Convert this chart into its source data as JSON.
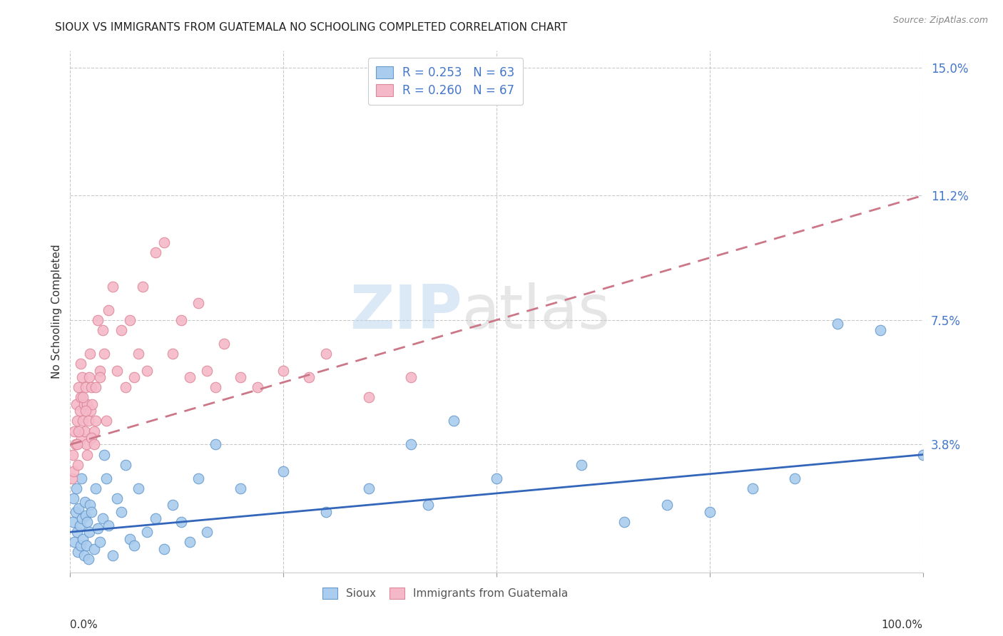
{
  "title": "SIOUX VS IMMIGRANTS FROM GUATEMALA NO SCHOOLING COMPLETED CORRELATION CHART",
  "source": "Source: ZipAtlas.com",
  "ylabel": "No Schooling Completed",
  "yticks": [
    "15.0%",
    "11.2%",
    "7.5%",
    "3.8%"
  ],
  "ytick_values": [
    15.0,
    11.2,
    7.5,
    3.8
  ],
  "watermark_zip": "ZIP",
  "watermark_atlas": "atlas",
  "sioux_color": "#aaccee",
  "sioux_edge_color": "#6699cc",
  "immig_color": "#f5b8c8",
  "immig_edge_color": "#dd8899",
  "sioux_line_color": "#3366bb",
  "immig_line_color": "#cc7788",
  "title_fontsize": 11,
  "sioux_scatter": [
    [
      0.3,
      1.5
    ],
    [
      0.4,
      2.2
    ],
    [
      0.5,
      0.9
    ],
    [
      0.6,
      1.8
    ],
    [
      0.7,
      2.5
    ],
    [
      0.8,
      1.2
    ],
    [
      0.9,
      0.6
    ],
    [
      1.0,
      1.9
    ],
    [
      1.1,
      1.4
    ],
    [
      1.2,
      0.8
    ],
    [
      1.3,
      2.8
    ],
    [
      1.4,
      1.6
    ],
    [
      1.5,
      1.0
    ],
    [
      1.6,
      0.5
    ],
    [
      1.7,
      2.1
    ],
    [
      1.8,
      1.7
    ],
    [
      1.9,
      0.8
    ],
    [
      2.0,
      1.5
    ],
    [
      2.1,
      0.4
    ],
    [
      2.2,
      1.2
    ],
    [
      2.3,
      2.0
    ],
    [
      2.5,
      1.8
    ],
    [
      2.8,
      0.7
    ],
    [
      3.0,
      2.5
    ],
    [
      3.2,
      1.3
    ],
    [
      3.5,
      0.9
    ],
    [
      3.8,
      1.6
    ],
    [
      4.0,
      3.5
    ],
    [
      4.2,
      2.8
    ],
    [
      4.5,
      1.4
    ],
    [
      5.0,
      0.5
    ],
    [
      5.5,
      2.2
    ],
    [
      6.0,
      1.8
    ],
    [
      6.5,
      3.2
    ],
    [
      7.0,
      1.0
    ],
    [
      7.5,
      0.8
    ],
    [
      8.0,
      2.5
    ],
    [
      9.0,
      1.2
    ],
    [
      10.0,
      1.6
    ],
    [
      11.0,
      0.7
    ],
    [
      12.0,
      2.0
    ],
    [
      13.0,
      1.5
    ],
    [
      14.0,
      0.9
    ],
    [
      15.0,
      2.8
    ],
    [
      16.0,
      1.2
    ],
    [
      17.0,
      3.8
    ],
    [
      20.0,
      2.5
    ],
    [
      25.0,
      3.0
    ],
    [
      30.0,
      1.8
    ],
    [
      35.0,
      2.5
    ],
    [
      40.0,
      3.8
    ],
    [
      42.0,
      2.0
    ],
    [
      45.0,
      4.5
    ],
    [
      50.0,
      2.8
    ],
    [
      60.0,
      3.2
    ],
    [
      65.0,
      1.5
    ],
    [
      70.0,
      2.0
    ],
    [
      75.0,
      1.8
    ],
    [
      80.0,
      2.5
    ],
    [
      85.0,
      2.8
    ],
    [
      90.0,
      7.4
    ],
    [
      95.0,
      7.2
    ],
    [
      100.0,
      3.5
    ]
  ],
  "immig_scatter": [
    [
      0.2,
      2.8
    ],
    [
      0.3,
      3.5
    ],
    [
      0.4,
      3.0
    ],
    [
      0.5,
      4.2
    ],
    [
      0.6,
      3.8
    ],
    [
      0.7,
      5.0
    ],
    [
      0.8,
      4.5
    ],
    [
      0.9,
      3.2
    ],
    [
      1.0,
      5.5
    ],
    [
      1.1,
      4.8
    ],
    [
      1.2,
      5.2
    ],
    [
      1.3,
      4.0
    ],
    [
      1.4,
      5.8
    ],
    [
      1.5,
      4.5
    ],
    [
      1.6,
      5.0
    ],
    [
      1.7,
      4.2
    ],
    [
      1.8,
      5.5
    ],
    [
      1.9,
      3.8
    ],
    [
      2.0,
      5.0
    ],
    [
      2.1,
      4.5
    ],
    [
      2.2,
      5.8
    ],
    [
      2.3,
      6.5
    ],
    [
      2.4,
      4.8
    ],
    [
      2.5,
      5.5
    ],
    [
      2.6,
      5.0
    ],
    [
      2.8,
      4.2
    ],
    [
      3.0,
      5.5
    ],
    [
      3.2,
      7.5
    ],
    [
      3.5,
      6.0
    ],
    [
      3.8,
      7.2
    ],
    [
      4.0,
      6.5
    ],
    [
      4.5,
      7.8
    ],
    [
      5.0,
      8.5
    ],
    [
      5.5,
      6.0
    ],
    [
      6.0,
      7.2
    ],
    [
      6.5,
      5.5
    ],
    [
      7.0,
      7.5
    ],
    [
      7.5,
      5.8
    ],
    [
      8.0,
      6.5
    ],
    [
      8.5,
      8.5
    ],
    [
      9.0,
      6.0
    ],
    [
      10.0,
      9.5
    ],
    [
      11.0,
      9.8
    ],
    [
      12.0,
      6.5
    ],
    [
      13.0,
      7.5
    ],
    [
      14.0,
      5.8
    ],
    [
      15.0,
      8.0
    ],
    [
      16.0,
      6.0
    ],
    [
      17.0,
      5.5
    ],
    [
      18.0,
      6.8
    ],
    [
      20.0,
      5.8
    ],
    [
      22.0,
      5.5
    ],
    [
      25.0,
      6.0
    ],
    [
      28.0,
      5.8
    ],
    [
      30.0,
      6.5
    ],
    [
      35.0,
      5.2
    ],
    [
      40.0,
      5.8
    ],
    [
      0.8,
      3.8
    ],
    [
      1.2,
      6.2
    ],
    [
      1.0,
      4.2
    ],
    [
      2.0,
      3.5
    ],
    [
      1.5,
      5.2
    ],
    [
      2.5,
      4.0
    ],
    [
      3.0,
      4.5
    ],
    [
      2.8,
      3.8
    ],
    [
      1.8,
      4.8
    ],
    [
      3.5,
      5.8
    ],
    [
      4.2,
      4.5
    ]
  ],
  "xlim": [
    0,
    100
  ],
  "ylim": [
    0,
    15.5
  ],
  "background_color": "#ffffff",
  "grid_color": "#bbbbbb"
}
